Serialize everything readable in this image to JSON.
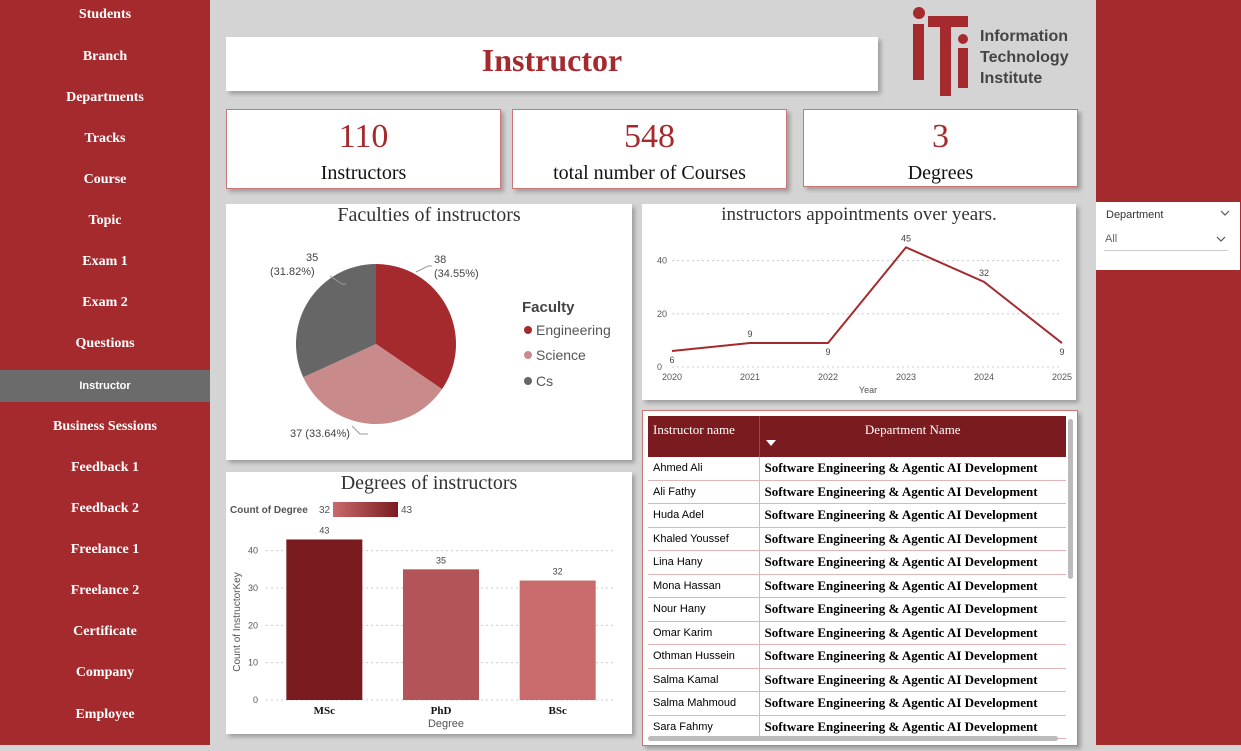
{
  "sidebar": {
    "items": [
      {
        "label": "Students"
      },
      {
        "label": "Branch"
      },
      {
        "label": "Departments"
      },
      {
        "label": "Tracks"
      },
      {
        "label": "Course"
      },
      {
        "label": "Topic"
      },
      {
        "label": "Exam 1"
      },
      {
        "label": "Exam 2"
      },
      {
        "label": "Questions"
      },
      {
        "label": "Instructor",
        "active": true
      },
      {
        "label": "Business Sessions"
      },
      {
        "label": "Feedback 1"
      },
      {
        "label": "Feedback 2"
      },
      {
        "label": "Freelance 1"
      },
      {
        "label": "Freelance 2"
      },
      {
        "label": "Certificate"
      },
      {
        "label": "Company"
      },
      {
        "label": "Employee"
      }
    ]
  },
  "header": {
    "title": "Instructor"
  },
  "logo": {
    "line1": "Information",
    "line2": "Technology",
    "line3": "Institute"
  },
  "kpis": [
    {
      "value": "110",
      "label": "Instructors"
    },
    {
      "value": "548",
      "label": "total number of Courses"
    },
    {
      "value": "3",
      "label": "Degrees"
    }
  ],
  "filter": {
    "label": "Department",
    "value": "All"
  },
  "colors": {
    "primary": "#a52a2e",
    "engineering": "#a52a2e",
    "science": "#c98a8c",
    "cs": "#666666"
  },
  "chart_data": [
    {
      "type": "pie",
      "title": "Faculties of instructors",
      "legend_title": "Faculty",
      "categories": [
        "Engineering",
        "Science",
        "Cs"
      ],
      "values": [
        38,
        37,
        35
      ],
      "labels": [
        "38",
        "(34.55%)",
        "37 (33.64%)",
        "35",
        "(31.82%)"
      ]
    },
    {
      "type": "line",
      "title": "instructors appointments over years.",
      "xlabel": "Year",
      "x": [
        "2020",
        "2021",
        "2022",
        "2023",
        "2024",
        "2025"
      ],
      "values": [
        6,
        9,
        9,
        45,
        32,
        9
      ],
      "ylim": [
        0,
        50
      ],
      "yticks": [
        "0",
        "20",
        "40"
      ]
    },
    {
      "type": "bar",
      "title": "Degrees of instructors",
      "legend_label": "Count of Degree",
      "legend_min": "32",
      "legend_max": "43",
      "xlabel": "Degree",
      "ylabel": "Count of InstructorKey",
      "categories": [
        "MSc",
        "PhD",
        "BSc"
      ],
      "values": [
        43,
        35,
        32
      ],
      "ylim": [
        0,
        45
      ],
      "yticks": [
        "0",
        "10",
        "20",
        "30",
        "40"
      ]
    }
  ],
  "table": {
    "headers": [
      "Instructor name",
      "Department Name"
    ],
    "rows": [
      [
        "Ahmed Ali",
        "Software Engineering & Agentic AI Development"
      ],
      [
        "Ali Fathy",
        "Software Engineering & Agentic AI Development"
      ],
      [
        "Huda Adel",
        "Software Engineering & Agentic AI Development"
      ],
      [
        "Khaled Youssef",
        "Software Engineering & Agentic AI Development"
      ],
      [
        "Lina Hany",
        "Software Engineering & Agentic AI Development"
      ],
      [
        "Mona Hassan",
        "Software Engineering & Agentic AI Development"
      ],
      [
        "Nour Hany",
        "Software Engineering & Agentic AI Development"
      ],
      [
        "Omar Karim",
        "Software Engineering & Agentic AI Development"
      ],
      [
        "Othman Hussein",
        "Software Engineering & Agentic AI Development"
      ],
      [
        "Salma Kamal",
        "Software Engineering & Agentic AI Development"
      ],
      [
        "Salma Mahmoud",
        "Software Engineering & Agentic AI Development"
      ],
      [
        "Sara Fahmy",
        "Software Engineering & Agentic AI Development"
      ]
    ]
  }
}
